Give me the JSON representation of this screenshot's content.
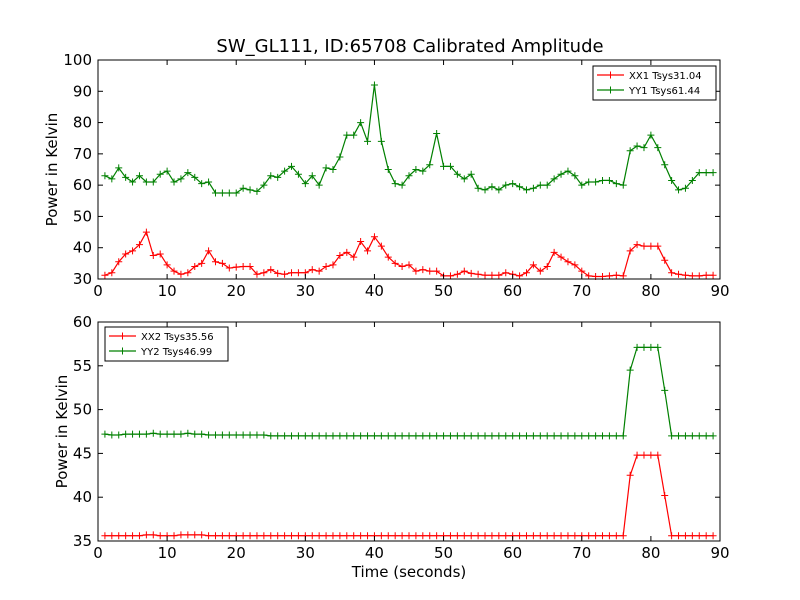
{
  "title": "SW_GL111, ID:65708 Calibrated Amplitude",
  "chart_data": [
    {
      "type": "line",
      "ylabel": "Power in Kelvin",
      "xlabel": "",
      "xlim": [
        0,
        90
      ],
      "ylim": [
        30,
        100
      ],
      "xticks": [
        "0",
        "10",
        "20",
        "30",
        "40",
        "50",
        "60",
        "70",
        "80",
        "90"
      ],
      "yticks": [
        "30",
        "40",
        "50",
        "60",
        "70",
        "80",
        "90",
        "100"
      ],
      "legend_position": "top-right",
      "x": [
        1,
        2,
        3,
        4,
        5,
        6,
        7,
        8,
        9,
        10,
        11,
        12,
        13,
        14,
        15,
        16,
        17,
        18,
        19,
        20,
        21,
        22,
        23,
        24,
        25,
        26,
        27,
        28,
        29,
        30,
        31,
        32,
        33,
        34,
        35,
        36,
        37,
        38,
        39,
        40,
        41,
        42,
        43,
        44,
        45,
        46,
        47,
        48,
        49,
        50,
        51,
        52,
        53,
        54,
        55,
        56,
        57,
        58,
        59,
        60,
        61,
        62,
        63,
        64,
        65,
        66,
        67,
        68,
        69,
        70,
        71,
        72,
        73,
        74,
        75,
        76,
        77,
        78,
        79,
        80,
        81,
        82,
        83,
        84,
        85,
        86,
        87,
        88,
        89
      ],
      "series": [
        {
          "name": "XX1 Tsys31.04",
          "color": "#ff0000",
          "values": [
            31.2,
            32,
            35.5,
            38,
            39,
            41,
            45,
            37.5,
            38,
            34.5,
            32.5,
            31.5,
            32,
            34,
            35,
            39,
            35.5,
            35,
            33.5,
            33.8,
            34,
            34,
            31.5,
            32,
            33,
            31.8,
            31.5,
            32,
            32,
            32,
            33,
            32.5,
            34,
            34.5,
            37.5,
            38.5,
            37,
            42,
            39,
            43.5,
            40.5,
            37,
            35,
            34,
            34.5,
            32.5,
            33,
            32.5,
            32.5,
            31,
            31,
            31.5,
            32.5,
            31.8,
            31.5,
            31.2,
            31.2,
            31.2,
            32,
            31.5,
            31,
            32,
            34.5,
            32.5,
            34,
            38.5,
            37,
            35.5,
            34.5,
            32.5,
            31,
            30.8,
            30.8,
            31,
            31.2,
            31,
            39,
            41,
            40.5,
            40.5,
            40.5,
            36,
            32,
            31.5,
            31.2,
            31,
            31,
            31.2,
            31.2
          ]
        },
        {
          "name": "YY1 Tsys61.44",
          "color": "#008000",
          "values": [
            63,
            62,
            65.5,
            62.5,
            61,
            63,
            61,
            61,
            63.5,
            64.5,
            61,
            62,
            64,
            62.5,
            60.5,
            61,
            57.5,
            57.5,
            57.5,
            57.5,
            59,
            58.5,
            58,
            60,
            63,
            62.5,
            64.5,
            66,
            63.5,
            60.5,
            63,
            60,
            65.5,
            65,
            69,
            76,
            76,
            80,
            74,
            92,
            74,
            65,
            60.5,
            60,
            63,
            65,
            64.5,
            66.5,
            76.5,
            66,
            66,
            63.5,
            62,
            63.5,
            59,
            58.5,
            59.5,
            58.5,
            60,
            60.5,
            59.5,
            58.5,
            59,
            60,
            60,
            62,
            63.5,
            64.5,
            63,
            60,
            61,
            61,
            61.5,
            61.5,
            60.5,
            60,
            71,
            72.5,
            72,
            76,
            72,
            66.5,
            61.5,
            58.5,
            59,
            61.5,
            64,
            64,
            64
          ]
        }
      ]
    },
    {
      "type": "line",
      "ylabel": "Power in Kelvin",
      "xlabel": "Time (seconds)",
      "xlim": [
        0,
        90
      ],
      "ylim": [
        35,
        60
      ],
      "xticks": [
        "0",
        "10",
        "20",
        "30",
        "40",
        "50",
        "60",
        "70",
        "80",
        "90"
      ],
      "yticks": [
        "35",
        "40",
        "45",
        "50",
        "55",
        "60"
      ],
      "legend_position": "top-left",
      "x": [
        1,
        2,
        3,
        4,
        5,
        6,
        7,
        8,
        9,
        10,
        11,
        12,
        13,
        14,
        15,
        16,
        17,
        18,
        19,
        20,
        21,
        22,
        23,
        24,
        25,
        26,
        27,
        28,
        29,
        30,
        31,
        32,
        33,
        34,
        35,
        36,
        37,
        38,
        39,
        40,
        41,
        42,
        43,
        44,
        45,
        46,
        47,
        48,
        49,
        50,
        51,
        52,
        53,
        54,
        55,
        56,
        57,
        58,
        59,
        60,
        61,
        62,
        63,
        64,
        65,
        66,
        67,
        68,
        69,
        70,
        71,
        72,
        73,
        74,
        75,
        76,
        77,
        78,
        79,
        80,
        81,
        82,
        83,
        84,
        85,
        86,
        87,
        88,
        89
      ],
      "series": [
        {
          "name": "XX2 Tsys35.56",
          "color": "#ff0000",
          "values": [
            35.6,
            35.6,
            35.6,
            35.6,
            35.6,
            35.6,
            35.7,
            35.7,
            35.6,
            35.6,
            35.6,
            35.7,
            35.7,
            35.7,
            35.7,
            35.6,
            35.6,
            35.6,
            35.6,
            35.6,
            35.6,
            35.6,
            35.6,
            35.6,
            35.6,
            35.6,
            35.6,
            35.6,
            35.6,
            35.6,
            35.6,
            35.6,
            35.6,
            35.6,
            35.6,
            35.6,
            35.6,
            35.6,
            35.6,
            35.6,
            35.6,
            35.6,
            35.6,
            35.6,
            35.6,
            35.6,
            35.6,
            35.6,
            35.6,
            35.6,
            35.6,
            35.6,
            35.6,
            35.6,
            35.6,
            35.6,
            35.6,
            35.6,
            35.6,
            35.6,
            35.6,
            35.6,
            35.6,
            35.6,
            35.6,
            35.6,
            35.6,
            35.6,
            35.6,
            35.6,
            35.6,
            35.6,
            35.6,
            35.6,
            35.6,
            35.6,
            42.5,
            44.8,
            44.8,
            44.8,
            44.8,
            40.2,
            35.6,
            35.6,
            35.6,
            35.6,
            35.6,
            35.6,
            35.6
          ]
        },
        {
          "name": "YY2 Tsys46.99",
          "color": "#008000",
          "values": [
            47.2,
            47.1,
            47.1,
            47.2,
            47.2,
            47.2,
            47.2,
            47.3,
            47.2,
            47.2,
            47.2,
            47.2,
            47.3,
            47.2,
            47.2,
            47.1,
            47.1,
            47.1,
            47.1,
            47.1,
            47.1,
            47.1,
            47.1,
            47.1,
            47.0,
            47.0,
            47.0,
            47.0,
            47.0,
            47.0,
            47.0,
            47.0,
            47.0,
            47.0,
            47.0,
            47.0,
            47.0,
            47.0,
            47.0,
            47.0,
            47.0,
            47.0,
            47.0,
            47.0,
            47.0,
            47.0,
            47.0,
            47.0,
            47.0,
            47.0,
            47.0,
            47.0,
            47.0,
            47.0,
            47.0,
            47.0,
            47.0,
            47.0,
            47.0,
            47.0,
            47.0,
            47.0,
            47.0,
            47.0,
            47.0,
            47.0,
            47.0,
            47.0,
            47.0,
            47.0,
            47.0,
            47.0,
            47.0,
            47.0,
            47.0,
            47.0,
            54.5,
            57.1,
            57.1,
            57.1,
            57.1,
            52.2,
            47.0,
            47.0,
            47.0,
            47.0,
            47.0,
            47.0,
            47.0
          ]
        }
      ]
    }
  ]
}
